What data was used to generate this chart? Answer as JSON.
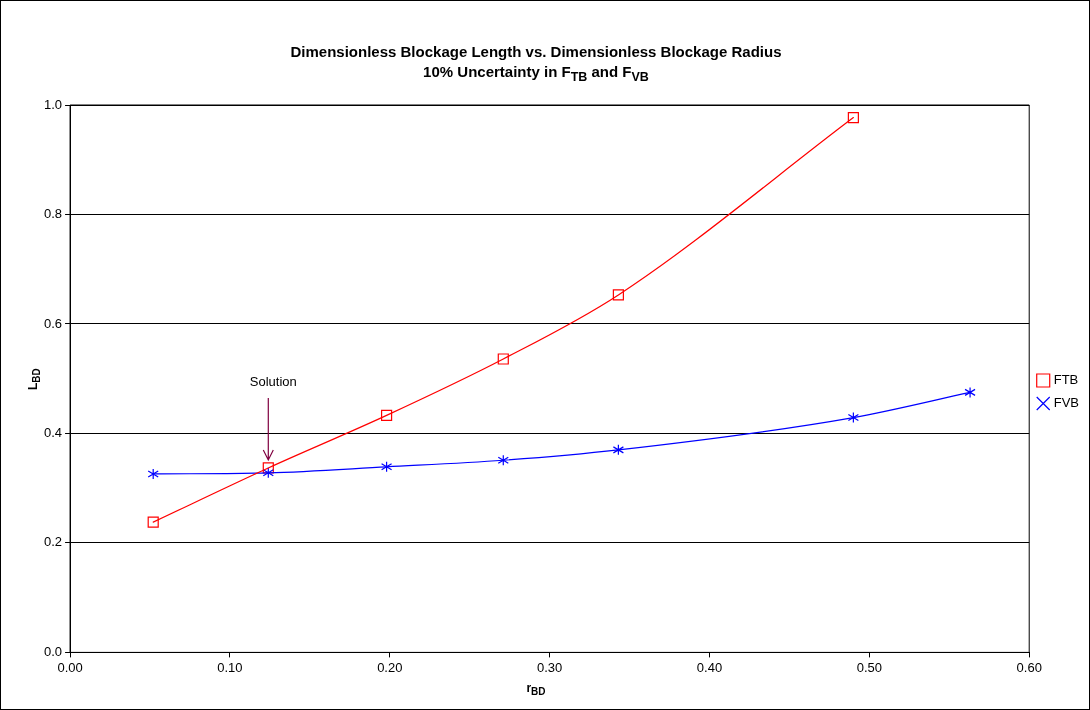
{
  "chart_data": {
    "type": "line",
    "title": "Dimensionless Blockage Length vs. Dimensionless Blockage Radius",
    "subtitle": "10% Uncertainty in F$_{TB}$ and F$_{VB}$",
    "xlabel": "r$_{BD}$",
    "ylabel": "L$_{BD}$",
    "series": [
      {
        "name": "FTB",
        "color": "#ff0000",
        "marker": "square",
        "x": [
          0.052,
          0.124,
          0.198,
          0.271,
          0.343,
          0.49
        ],
        "values": [
          0.238,
          0.337,
          0.433,
          0.536,
          0.653,
          0.977
        ]
      },
      {
        "name": "FVB",
        "color": "#0000ff",
        "marker": "cross",
        "x": [
          0.052,
          0.124,
          0.198,
          0.271,
          0.343,
          0.49,
          0.563
        ],
        "values": [
          0.326,
          0.328,
          0.339,
          0.351,
          0.37,
          0.429,
          0.475
        ]
      }
    ],
    "xlim": [
      0,
      0.6
    ],
    "xticks": [
      {
        "value": 0,
        "label": "0.00"
      },
      {
        "value": 0.1,
        "label": "0.10"
      },
      {
        "value": 0.2,
        "label": "0.20"
      },
      {
        "value": 0.3,
        "label": "0.30"
      },
      {
        "value": 0.4,
        "label": "0.40"
      },
      {
        "value": 0.5,
        "label": "0.50"
      },
      {
        "value": 0.6,
        "label": "0.60"
      }
    ],
    "ylim": [
      0,
      1
    ],
    "yticks": [
      {
        "value": 0,
        "label": "0.0"
      },
      {
        "value": 0.2,
        "label": "0.2"
      },
      {
        "value": 0.4,
        "label": "0.4"
      },
      {
        "value": 0.6,
        "label": "0.6"
      },
      {
        "value": 0.8,
        "label": "0.8"
      },
      {
        "value": 1,
        "label": "1.0"
      }
    ],
    "annotations": [
      {
        "text": "Solution",
        "x": 0.124,
        "y": 0.337
      }
    ],
    "grid": "y",
    "legend": "right",
    "line_style": "solid"
  }
}
